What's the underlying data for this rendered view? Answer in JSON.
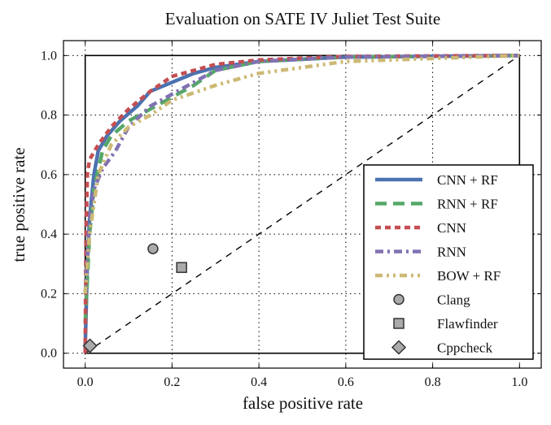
{
  "chart_data": {
    "type": "line",
    "title": "Evaluation on SATE IV Juliet Test Suite",
    "xlabel": "false positive rate",
    "ylabel": "true positive rate",
    "xlim": [
      -0.05,
      1.05
    ],
    "ylim": [
      -0.05,
      1.05
    ],
    "xticks": [
      "0.0",
      "0.2",
      "0.4",
      "0.6",
      "0.8",
      "1.0"
    ],
    "yticks": [
      "0.0",
      "0.2",
      "0.4",
      "0.6",
      "0.8",
      "1.0"
    ],
    "grid": true,
    "legend_position": "bottom-right",
    "series": [
      {
        "name": "CNN + RF",
        "color": "#4c72b0",
        "style": "solid",
        "x": [
          0,
          0.005,
          0.01,
          0.02,
          0.03,
          0.05,
          0.08,
          0.12,
          0.15,
          0.2,
          0.25,
          0.3,
          0.4,
          0.6,
          1.0
        ],
        "y": [
          0.02,
          0.3,
          0.45,
          0.6,
          0.68,
          0.73,
          0.78,
          0.83,
          0.88,
          0.91,
          0.94,
          0.96,
          0.98,
          0.995,
          1.0
        ]
      },
      {
        "name": "RNN + RF",
        "color": "#55a868",
        "style": "dashed",
        "x": [
          0,
          0.01,
          0.02,
          0.04,
          0.06,
          0.1,
          0.15,
          0.2,
          0.25,
          0.3,
          0.4,
          0.6,
          1.0
        ],
        "y": [
          0.1,
          0.4,
          0.55,
          0.68,
          0.73,
          0.78,
          0.82,
          0.86,
          0.9,
          0.95,
          0.98,
          0.995,
          1.0
        ]
      },
      {
        "name": "CNN",
        "color": "#c44e52",
        "style": "short-dashed",
        "x": [
          0,
          0.002,
          0.005,
          0.01,
          0.03,
          0.06,
          0.1,
          0.15,
          0.2,
          0.3,
          0.4,
          0.6,
          1.0
        ],
        "y": [
          0,
          0.4,
          0.6,
          0.65,
          0.7,
          0.76,
          0.82,
          0.88,
          0.93,
          0.97,
          0.985,
          0.997,
          1.0
        ]
      },
      {
        "name": "RNN",
        "color": "#8172b2",
        "style": "dash-dot",
        "x": [
          0,
          0.01,
          0.02,
          0.04,
          0.07,
          0.1,
          0.15,
          0.2,
          0.25,
          0.3,
          0.4,
          0.6,
          1.0
        ],
        "y": [
          0.2,
          0.45,
          0.55,
          0.62,
          0.68,
          0.76,
          0.83,
          0.87,
          0.91,
          0.95,
          0.98,
          0.995,
          1.0
        ]
      },
      {
        "name": "BOW + RF",
        "color": "#ccb974",
        "style": "dash-dot-dot",
        "x": [
          0,
          0.01,
          0.02,
          0.03,
          0.06,
          0.1,
          0.15,
          0.2,
          0.3,
          0.4,
          0.5,
          0.6,
          0.8,
          1.0
        ],
        "y": [
          0.2,
          0.4,
          0.5,
          0.6,
          0.7,
          0.76,
          0.8,
          0.85,
          0.9,
          0.94,
          0.96,
          0.98,
          0.99,
          1.0
        ]
      }
    ],
    "points": [
      {
        "name": "Clang",
        "marker": "circle",
        "x": 0.156,
        "y": 0.351
      },
      {
        "name": "Flawfinder",
        "marker": "square",
        "x": 0.222,
        "y": 0.288
      },
      {
        "name": "Cppcheck",
        "marker": "diamond",
        "x": 0.011,
        "y": 0.025
      }
    ],
    "marker_color": "#aaaaaa",
    "reference_line": {
      "style": "dashed",
      "color": "#000000",
      "x": [
        0,
        1
      ],
      "y": [
        0,
        1
      ]
    }
  }
}
